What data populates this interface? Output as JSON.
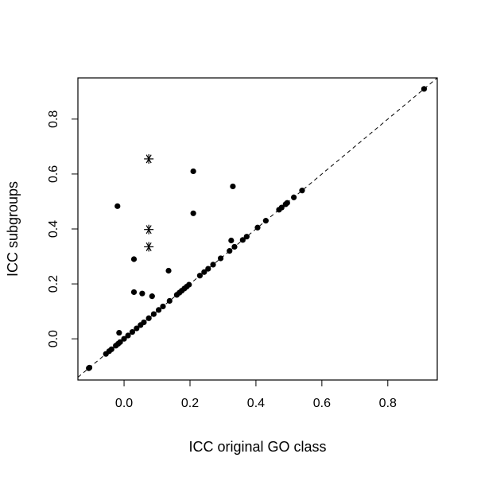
{
  "chart_data": {
    "type": "scatter",
    "title": "",
    "xlabel": "ICC original GO class",
    "ylabel": "ICC subgroups",
    "xlim": [
      -0.14,
      0.95
    ],
    "ylim": [
      -0.15,
      0.95
    ],
    "xticks": [
      0.0,
      0.2,
      0.4,
      0.6,
      0.8
    ],
    "yticks": [
      0.0,
      0.2,
      0.4,
      0.6,
      0.8
    ],
    "xtick_labels": [
      "0.0",
      "0.2",
      "0.4",
      "0.6",
      "0.8"
    ],
    "ytick_labels": [
      "0.0",
      "0.2",
      "0.4",
      "0.6",
      "0.8"
    ],
    "grid": false,
    "reference_line": {
      "style": "dashed",
      "slope": 1,
      "intercept": 0
    },
    "series": [
      {
        "marker": "dot",
        "points": [
          [
            -0.107,
            -0.107
          ],
          [
            -0.105,
            -0.105
          ],
          [
            -0.055,
            -0.055
          ],
          [
            -0.045,
            -0.045
          ],
          [
            -0.038,
            -0.038
          ],
          [
            -0.025,
            -0.025
          ],
          [
            -0.018,
            -0.018
          ],
          [
            -0.012,
            -0.012
          ],
          [
            0.0,
            0.0
          ],
          [
            0.012,
            0.012
          ],
          [
            0.025,
            0.025
          ],
          [
            0.038,
            0.038
          ],
          [
            0.05,
            0.05
          ],
          [
            0.06,
            0.06
          ],
          [
            0.075,
            0.075
          ],
          [
            0.09,
            0.09
          ],
          [
            0.105,
            0.105
          ],
          [
            0.118,
            0.118
          ],
          [
            0.138,
            0.138
          ],
          [
            0.16,
            0.16
          ],
          [
            0.168,
            0.168
          ],
          [
            0.175,
            0.175
          ],
          [
            0.183,
            0.183
          ],
          [
            0.19,
            0.19
          ],
          [
            0.197,
            0.197
          ],
          [
            0.23,
            0.23
          ],
          [
            0.243,
            0.243
          ],
          [
            0.255,
            0.255
          ],
          [
            0.27,
            0.27
          ],
          [
            0.293,
            0.293
          ],
          [
            0.32,
            0.32
          ],
          [
            0.335,
            0.335
          ],
          [
            0.36,
            0.36
          ],
          [
            0.372,
            0.372
          ],
          [
            0.405,
            0.405
          ],
          [
            0.43,
            0.43
          ],
          [
            0.47,
            0.47
          ],
          [
            0.478,
            0.478
          ],
          [
            0.49,
            0.49
          ],
          [
            0.495,
            0.495
          ],
          [
            0.515,
            0.515
          ],
          [
            0.54,
            0.54
          ],
          [
            0.91,
            0.91
          ],
          [
            -0.02,
            0.483
          ],
          [
            -0.015,
            0.022
          ],
          [
            0.03,
            0.29
          ],
          [
            0.03,
            0.17
          ],
          [
            0.055,
            0.165
          ],
          [
            0.085,
            0.155
          ],
          [
            0.135,
            0.248
          ],
          [
            0.21,
            0.61
          ],
          [
            0.21,
            0.457
          ],
          [
            0.33,
            0.555
          ],
          [
            0.325,
            0.358
          ]
        ]
      },
      {
        "marker": "asterisk",
        "points": [
          [
            0.075,
            0.655
          ],
          [
            0.075,
            0.398
          ],
          [
            0.075,
            0.335
          ]
        ]
      }
    ]
  }
}
